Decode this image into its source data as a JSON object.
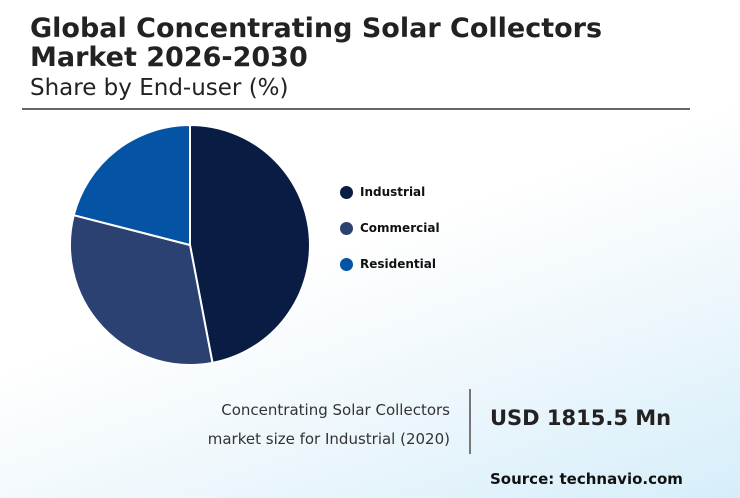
{
  "header": {
    "title": "Global Concentrating Solar Collectors Market 2026-2030",
    "subtitle": "Share by End-user (%)"
  },
  "chart_data": {
    "type": "pie",
    "title": "Global Concentrating Solar Collectors Market 2026-2030",
    "subtitle": "Share by End-user (%)",
    "categories": [
      "Industrial",
      "Commercial",
      "Residential"
    ],
    "values": [
      47,
      32,
      21
    ],
    "colors": [
      "#081c44",
      "#2a4171",
      "#0453a5"
    ],
    "slice_border_color": "#ffffff",
    "legend_position": "right"
  },
  "stat": {
    "label_line1": "Concentrating Solar Collectors",
    "label_line2": "market size for Industrial (2020)",
    "value": "USD 1815.5 Mn"
  },
  "footer": {
    "source": "Source: technavio.com"
  }
}
